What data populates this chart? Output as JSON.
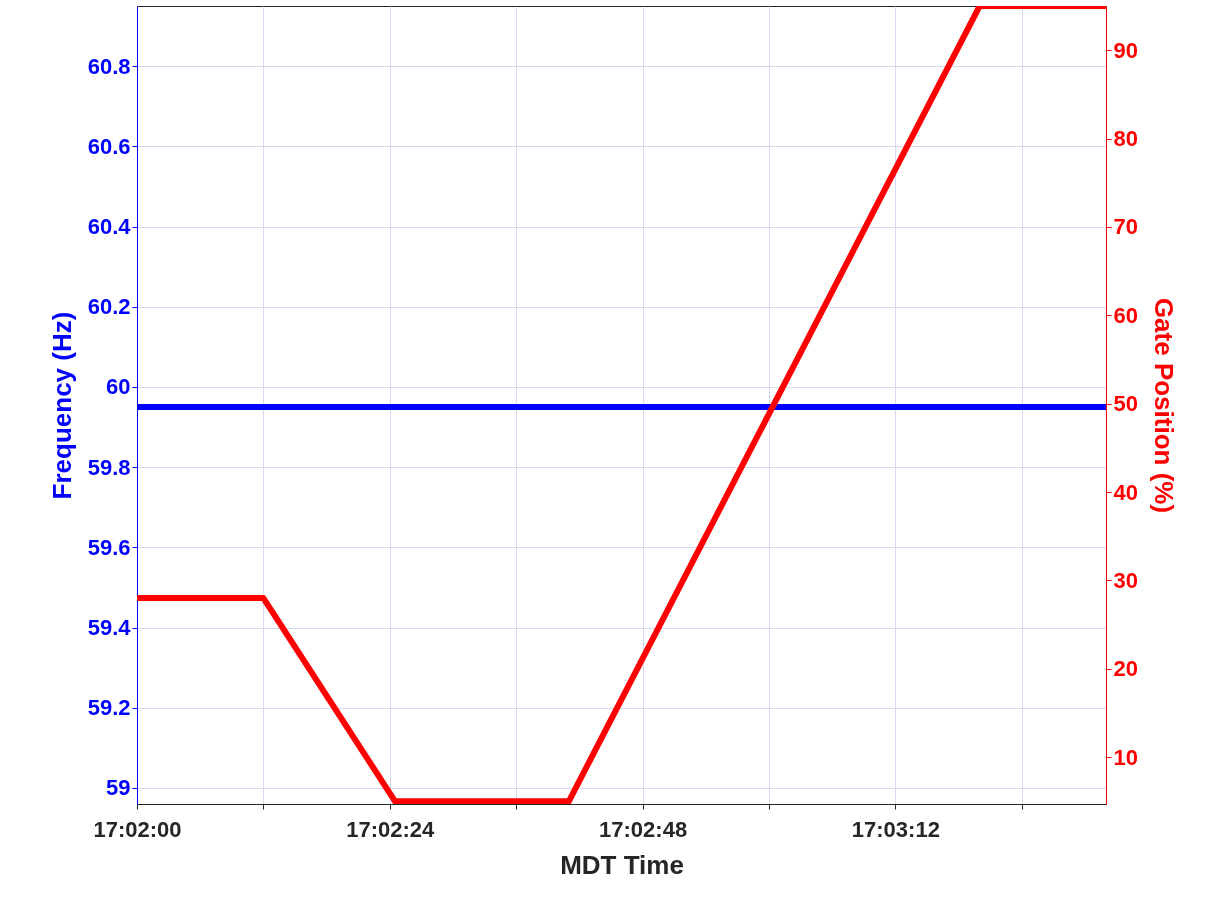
{
  "chart_data": {
    "type": "line",
    "xlabel": "MDT Time",
    "ylabel": "Frequency (Hz)",
    "y2label": "Gate Position (%)",
    "xlim": [
      17.033333,
      17.058889
    ],
    "xticks": [
      {
        "value": 17.033333,
        "label": "17:02:00"
      },
      {
        "value": 17.036667,
        "label": null
      },
      {
        "value": 17.04,
        "label": "17:02:24"
      },
      {
        "value": 17.043333,
        "label": null
      },
      {
        "value": 17.046667,
        "label": "17:02:48"
      },
      {
        "value": 17.05,
        "label": null
      },
      {
        "value": 17.053333,
        "label": "17:03:12"
      },
      {
        "value": 17.056667,
        "label": null
      }
    ],
    "ylim": [
      58.96,
      60.95
    ],
    "yticks": [
      59,
      59.2,
      59.4,
      59.6,
      59.8,
      60,
      60.2,
      60.4,
      60.6,
      60.8
    ],
    "y2lim": [
      4.7,
      95
    ],
    "y2ticks": [
      10,
      20,
      30,
      40,
      50,
      60,
      70,
      80,
      90
    ],
    "grid": true,
    "line_style": "solid",
    "series": [
      {
        "color": "#0000ff",
        "x": [
          17.033333,
          17.058889
        ],
        "values": [
          59.95,
          59.95
        ]
      },
      {
        "color": "#ff0000",
        "axis": "y2",
        "x": [
          17.033333,
          17.036667,
          17.040139,
          17.044722,
          17.055556,
          17.058889
        ],
        "values": [
          28,
          28,
          5,
          5,
          95,
          95
        ]
      }
    ]
  }
}
